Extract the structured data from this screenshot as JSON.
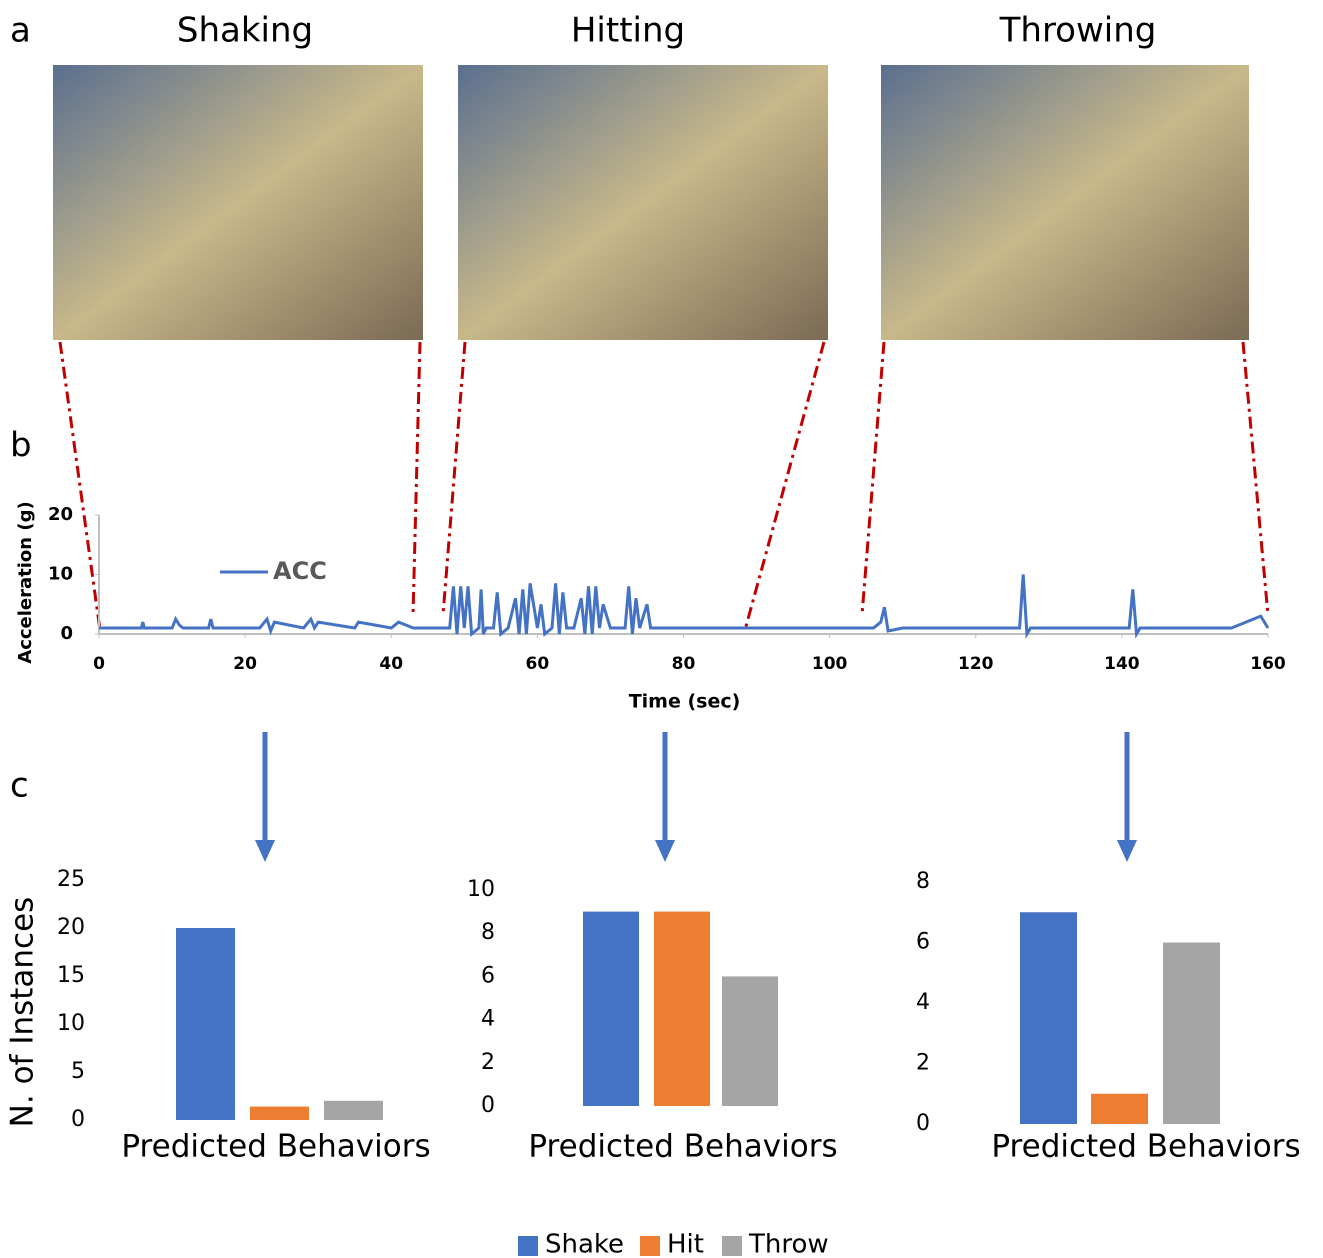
{
  "figure": {
    "panel_labels": [
      "a",
      "b",
      "c"
    ],
    "photo_titles": [
      "Shaking",
      "Hitting",
      "Throwing"
    ]
  },
  "legend": [
    {
      "name": "Shake",
      "color": "#4472c4"
    },
    {
      "name": "Hit",
      "color": "#ed7d31"
    },
    {
      "name": "Throw",
      "color": "#a5a5a5"
    }
  ],
  "chart_data": [
    {
      "type": "line",
      "x_label": "Time (sec)",
      "y_label": "Acceleration (g)",
      "xlim": [
        0,
        160
      ],
      "xticks": [
        0,
        20,
        40,
        60,
        80,
        100,
        120,
        140,
        160
      ],
      "ylim": [
        0,
        20
      ],
      "yticks": [
        0,
        10,
        20
      ],
      "x": [
        0,
        0.5,
        5.8,
        6,
        6.2,
        10,
        10.5,
        11,
        11.5,
        15,
        15.3,
        15.6,
        22,
        23,
        23.5,
        24,
        28,
        29,
        29.5,
        30,
        35,
        35.5,
        40,
        41,
        43,
        45,
        48,
        48.5,
        49,
        49.5,
        50,
        50.5,
        51,
        52,
        52.3,
        52.6,
        53,
        54,
        54.5,
        55,
        56,
        57,
        57.5,
        58,
        58.5,
        59,
        60,
        60.5,
        61,
        62,
        62.5,
        63,
        63.5,
        64,
        65,
        66,
        66.5,
        67,
        67.5,
        68,
        68.5,
        69,
        70,
        72,
        72.5,
        73,
        73.5,
        74,
        75,
        75.5,
        76,
        78,
        85,
        95,
        100,
        106,
        107,
        107.5,
        108,
        110,
        115,
        120,
        126,
        126.5,
        127,
        127.5,
        130,
        135,
        141,
        141.5,
        142,
        142.5,
        145,
        150,
        155,
        158,
        159,
        160
      ],
      "series": [
        {
          "name": "ACC",
          "color": "#4472c4",
          "values": [
            1,
            1,
            1,
            2,
            1,
            1,
            2.5,
            1.5,
            1,
            1,
            2.5,
            1,
            1,
            2.5,
            0.5,
            2,
            1,
            2.5,
            1,
            2,
            1,
            2,
            1,
            2,
            1,
            1,
            1,
            8,
            0,
            8,
            1,
            8,
            0,
            1,
            7.5,
            0,
            1,
            1,
            7,
            0,
            1,
            6,
            0,
            7.5,
            0,
            8.5,
            1,
            5,
            0,
            1,
            8.5,
            0,
            7,
            1,
            1,
            6,
            0,
            8,
            0,
            8,
            1,
            5,
            1,
            1,
            8,
            0,
            6,
            1,
            5,
            1,
            1,
            1,
            1,
            1,
            1,
            1,
            2,
            4.5,
            0.5,
            1,
            1,
            1,
            1,
            10,
            0,
            1,
            1,
            1,
            1,
            7.5,
            0,
            1,
            1,
            1,
            1,
            2.5,
            3,
            1
          ]
        }
      ]
    },
    {
      "type": "bar",
      "x_label": "Predicted Behaviors",
      "y_label": "N. of Instances",
      "values": [
        20,
        1.4,
        2
      ],
      "ylim": [
        0,
        25
      ],
      "yticks": [
        0,
        5,
        10,
        15,
        20,
        25
      ]
    },
    {
      "type": "bar",
      "x_label": "Predicted Behaviors",
      "values": [
        9,
        9,
        6
      ],
      "ylim": [
        0,
        10
      ],
      "yticks": [
        0,
        2,
        4,
        6,
        8,
        10
      ]
    },
    {
      "type": "bar",
      "x_label": "Predicted Behaviors",
      "values": [
        7,
        1,
        6
      ],
      "ylim": [
        0,
        8
      ],
      "yticks": [
        0,
        2,
        4,
        6,
        8
      ]
    }
  ]
}
